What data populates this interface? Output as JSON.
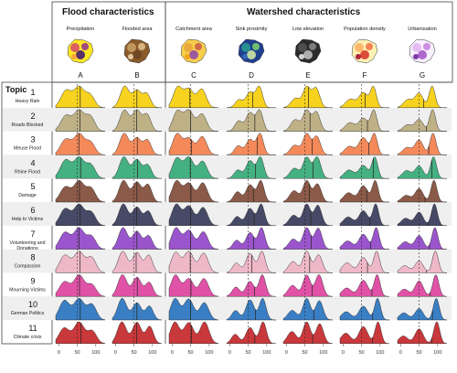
{
  "header": {
    "flood_title": "Flood characteristics",
    "watershed_title": "Watershed characteristics",
    "topic_title": "Topic"
  },
  "columns": [
    {
      "letter": "A",
      "label": "Precipitation",
      "map_palette": [
        "#fde725",
        "#d6456c",
        "#8e2f8f",
        "#3b0f70",
        "#f89540"
      ]
    },
    {
      "letter": "B",
      "label": "Flooded area",
      "map_palette": [
        "#8b5a2b",
        "#c8a165",
        "#e5c48f",
        "#6b4423",
        "#f1dcb0"
      ]
    },
    {
      "letter": "C",
      "label": "Catchment area",
      "map_palette": [
        "#f7cf4a",
        "#e6a23c",
        "#c9574a",
        "#8e44ad",
        "#f39c12"
      ]
    },
    {
      "letter": "D",
      "label": "Sink proximity",
      "map_palette": [
        "#1f3f8f",
        "#2a9d8f",
        "#7fd36b",
        "#d9f0a3",
        "#3b6fb6"
      ]
    },
    {
      "letter": "E",
      "label": "Low elevation",
      "map_palette": [
        "#2b2b2b",
        "#555555",
        "#8a8a8a",
        "#c4c4c4",
        "#eeeeee"
      ]
    },
    {
      "letter": "F",
      "label": "Population density",
      "map_palette": [
        "#fff1b3",
        "#fdae61",
        "#f46d43",
        "#d73027",
        "#a50026"
      ]
    },
    {
      "letter": "G",
      "label": "Urbanisation",
      "map_palette": [
        "#f8f0ff",
        "#e2b4f2",
        "#c77ddf",
        "#a14fc4",
        "#6a1b9a"
      ]
    }
  ],
  "topics": [
    {
      "num": "1",
      "name": "Heavy Rain",
      "color": "#f7d21f",
      "shaded": false
    },
    {
      "num": "2",
      "name": "Roads Blocked",
      "color": "#bfb186",
      "shaded": true
    },
    {
      "num": "3",
      "name": "Meuse Flood",
      "color": "#f48a5a",
      "shaded": false
    },
    {
      "num": "4",
      "name": "Rhine Flood",
      "color": "#45b081",
      "shaded": true
    },
    {
      "num": "5",
      "name": "Damage",
      "color": "#8c5a48",
      "shaded": false
    },
    {
      "num": "6",
      "name": "Help to Victims",
      "color": "#474a66",
      "shaded": true
    },
    {
      "num": "7",
      "name": "Volunteering and Donations",
      "color": "#9a55cc",
      "shaded": false
    },
    {
      "num": "8",
      "name": "Compassion",
      "color": "#efb8c8",
      "shaded": true
    },
    {
      "num": "9",
      "name": "Mourning Victims",
      "color": "#e052a6",
      "shaded": false
    },
    {
      "num": "10",
      "name": "German Politics",
      "color": "#3a7fc4",
      "shaded": true
    },
    {
      "num": "11",
      "name": "Climate crisis",
      "color": "#c9383b",
      "shaded": false
    }
  ],
  "axis": {
    "ticks": [
      "0",
      "50",
      "100"
    ],
    "tick_values": [
      0,
      50,
      100
    ],
    "range": [
      -8,
      125
    ],
    "dashed_line_value": 50
  },
  "chart_data": {
    "type": "area",
    "x_range": [
      -8,
      125
    ],
    "x_ticks": [
      0,
      50,
      100
    ],
    "reference_line": 50,
    "columns": [
      "Precipitation",
      "Flooded area",
      "Catchment area",
      "Sink proximity",
      "Low elevation",
      "Population density",
      "Urbanisation"
    ],
    "series_components": {
      "A": {
        "base": [
          [
            20,
            14,
            0.75
          ],
          [
            55,
            14,
            0.95
          ],
          [
            85,
            12,
            0.6
          ]
        ],
        "shift": 2
      },
      "B": {
        "base": [
          [
            25,
            12,
            0.8
          ],
          [
            58,
            12,
            0.7
          ],
          [
            85,
            10,
            0.55
          ]
        ],
        "shift": 3
      },
      "C": {
        "base": [
          [
            15,
            12,
            0.8
          ],
          [
            45,
            13,
            0.75
          ],
          [
            80,
            12,
            0.7
          ]
        ],
        "shift": 3
      },
      "D": {
        "base": [
          [
            25,
            10,
            0.35
          ],
          [
            55,
            11,
            0.65
          ],
          [
            80,
            9,
            0.8
          ]
        ],
        "shift": 4
      },
      "E": {
        "base": [
          [
            25,
            12,
            0.35
          ],
          [
            55,
            10,
            0.7
          ],
          [
            80,
            10,
            0.65
          ]
        ],
        "shift": 4
      },
      "F": {
        "base": [
          [
            20,
            13,
            0.35
          ],
          [
            55,
            12,
            0.6
          ],
          [
            82,
            8,
            0.85
          ]
        ],
        "shift": 5
      },
      "G": {
        "base": [
          [
            20,
            12,
            0.3
          ],
          [
            50,
            11,
            0.55
          ],
          [
            85,
            8,
            0.9
          ]
        ],
        "shift": 5
      }
    },
    "medians_by_column": {
      "A": [
        58,
        57,
        55,
        59,
        56,
        58,
        55,
        57,
        56,
        58,
        60
      ],
      "B": [
        58,
        57,
        59,
        60,
        58,
        57,
        58,
        56,
        59,
        58,
        57
      ],
      "C": [
        48,
        50,
        52,
        49,
        51,
        50,
        50,
        49,
        51,
        50,
        52
      ],
      "D": [
        62,
        68,
        74,
        70,
        64,
        66,
        65,
        60,
        67,
        70,
        68
      ],
      "E": [
        60,
        64,
        70,
        72,
        62,
        66,
        67,
        63,
        70,
        74,
        71
      ],
      "F": [
        60,
        66,
        70,
        82,
        64,
        72,
        74,
        66,
        78,
        80,
        80
      ],
      "G": [
        62,
        70,
        76,
        84,
        66,
        74,
        78,
        70,
        80,
        86,
        84
      ]
    }
  }
}
